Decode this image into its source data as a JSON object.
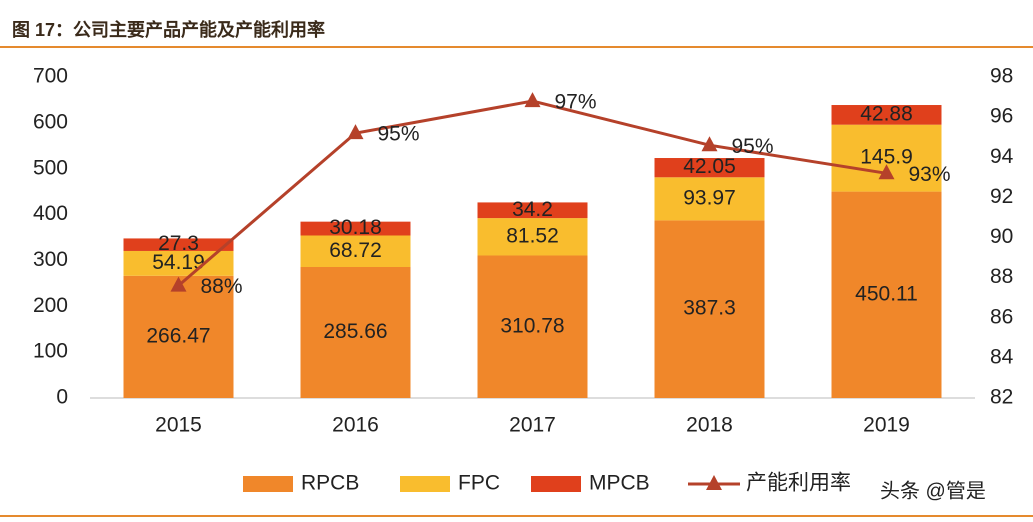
{
  "header": {
    "title": "图 17：公司主要产品产能及产能利用率"
  },
  "watermark": "头条 @管是",
  "chart_data": {
    "type": "bar-line",
    "categories": [
      "2015",
      "2016",
      "2017",
      "2018",
      "2019"
    ],
    "series": [
      {
        "name": "RPCB",
        "color": "#f0872a",
        "values": [
          266.47,
          285.66,
          310.78,
          387.3,
          450.11
        ]
      },
      {
        "name": "FPC",
        "color": "#f9bd2e",
        "values": [
          54.19,
          68.72,
          81.52,
          93.97,
          145.9
        ]
      },
      {
        "name": "MPCB",
        "color": "#e0401c",
        "values": [
          27.3,
          30.18,
          34.2,
          42.05,
          42.88
        ]
      },
      {
        "name": "产能利用率",
        "color": "#b5412a",
        "axis": "y2",
        "values": [
          87.6,
          95.2,
          96.8,
          94.6,
          93.2
        ],
        "value_labels": [
          "88%",
          "95%",
          "97%",
          "95%",
          "93%"
        ]
      }
    ],
    "ylim": [
      0,
      700
    ],
    "yticks": [
      0,
      100,
      200,
      300,
      400,
      500,
      600,
      700
    ],
    "y2lim": [
      82,
      98
    ],
    "y2ticks": [
      82,
      84,
      86,
      88,
      90,
      92,
      94,
      96,
      98
    ]
  }
}
